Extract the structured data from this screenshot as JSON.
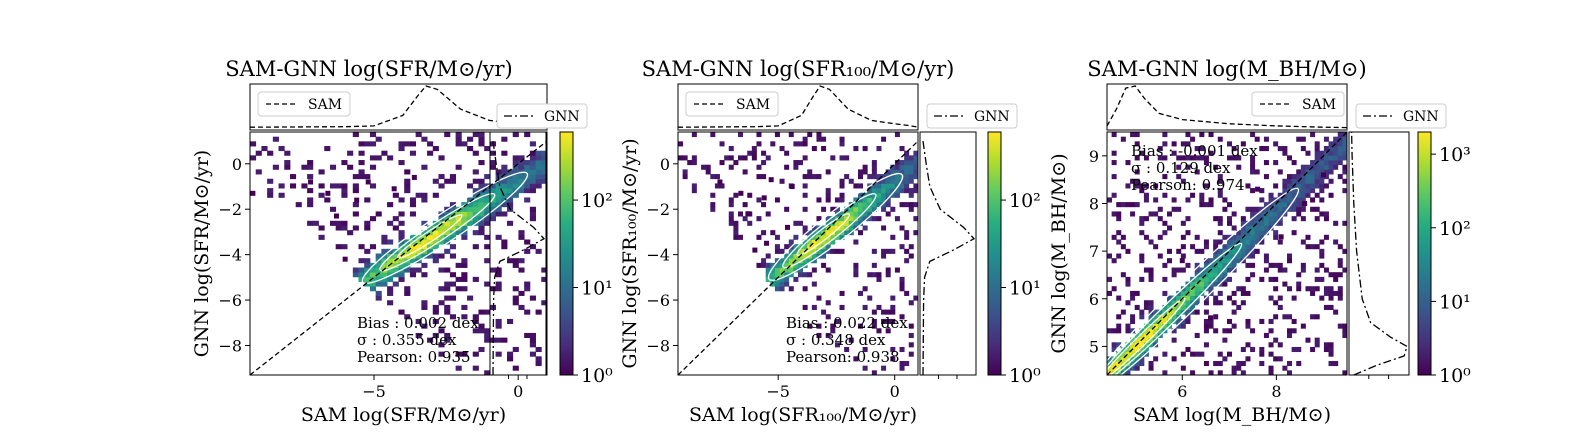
{
  "figure": {
    "background": "#ffffff",
    "colormap": "viridis",
    "contour_color": "#ffffff",
    "one_to_one_line_color": "#000000"
  },
  "chart_data": [
    {
      "type": "heatmap",
      "title": "SAM-GNN log(SFR/M⊙/yr)",
      "xlabel": "SAM log(SFR/M⊙/yr)",
      "ylabel": "GNN log(SFR/M⊙/yr)",
      "xlim": [
        -9.3,
        1.0
      ],
      "ylim": [
        -9.3,
        1.4
      ],
      "xticks": [
        {
          "v": -5,
          "label": "−5"
        },
        {
          "v": 0,
          "label": "0"
        }
      ],
      "yticks": [
        {
          "v": 0,
          "label": "0"
        },
        {
          "v": -2,
          "label": "−2"
        },
        {
          "v": -4,
          "label": "−4"
        },
        {
          "v": -6,
          "label": "−6"
        },
        {
          "v": -8,
          "label": "−8"
        }
      ],
      "one_to_one_line": true,
      "stats": [
        "Bias : 0.002 dex",
        "σ : 0.355 dex",
        "Pearson:  0.935"
      ],
      "stats_position": "bottom-right",
      "legend_top": "SAM",
      "legend_right": "GNN",
      "colorbar": {
        "scale": "log",
        "min": 1,
        "max": 600,
        "ticks": [
          {
            "v": 1,
            "label": "10⁰"
          },
          {
            "v": 10,
            "label": "10¹"
          },
          {
            "v": 100,
            "label": "10²"
          }
        ]
      },
      "density_ridge": {
        "from": [
          -5.2,
          -5.1
        ],
        "to": [
          1.0,
          0.1
        ],
        "peak": [
          -3.2,
          -3.3
        ],
        "peak_count": 600,
        "scatter_sigma": 0.36
      },
      "outliers": [
        [
          -9.2,
          -1.3
        ],
        [
          -7.2,
          -0.8
        ],
        [
          -6.3,
          -2.3
        ],
        [
          -5.6,
          -1.6
        ],
        [
          -6.6,
          -1.3
        ],
        [
          -5.2,
          -0.8
        ],
        [
          -4.3,
          -1.1
        ],
        [
          -3.6,
          -0.6
        ],
        [
          -6.0,
          -4.2
        ]
      ],
      "marginal_top": {
        "kind": "SAM kde",
        "x": [
          -9.3,
          -6,
          -5,
          -4,
          -3.5,
          -3.2,
          -2.8,
          -2,
          -1,
          0,
          0.6,
          1.0
        ],
        "density": [
          0.02,
          0.03,
          0.05,
          0.3,
          0.75,
          1.0,
          0.92,
          0.45,
          0.18,
          0.1,
          0.06,
          0.02
        ]
      },
      "marginal_right": {
        "kind": "GNN kde",
        "y": [
          -9.3,
          -6,
          -5,
          -4.3,
          -3.8,
          -3.3,
          -2.8,
          -2,
          -1,
          0,
          0.5,
          1.0
        ],
        "density": [
          0.02,
          0.03,
          0.05,
          0.15,
          0.6,
          1.0,
          0.8,
          0.35,
          0.15,
          0.08,
          0.05,
          0.02
        ]
      }
    },
    {
      "type": "heatmap",
      "title": "SAM-GNN log(SFR₁₀₀/M⊙/yr)",
      "xlabel": "SAM log(SFR₁₀₀/M⊙/yr)",
      "ylabel": "GNN log(SFR₁₀₀/M⊙/yr)",
      "xlim": [
        -9.3,
        1.0
      ],
      "ylim": [
        -9.3,
        1.4
      ],
      "xticks": [
        {
          "v": -5,
          "label": "−5"
        },
        {
          "v": 0,
          "label": "0"
        }
      ],
      "yticks": [
        {
          "v": 0,
          "label": "0"
        },
        {
          "v": -2,
          "label": "−2"
        },
        {
          "v": -4,
          "label": "−4"
        },
        {
          "v": -6,
          "label": "−6"
        },
        {
          "v": -8,
          "label": "−8"
        }
      ],
      "one_to_one_line": true,
      "stats": [
        "Bias : 0.022 dex",
        "σ : 0.348 dex",
        "Pearson:  0.938"
      ],
      "stats_position": "bottom-right",
      "legend_top": "SAM",
      "legend_right": "GNN",
      "colorbar": {
        "scale": "log",
        "min": 1,
        "max": 600,
        "ticks": [
          {
            "v": 1,
            "label": "10⁰"
          },
          {
            "v": 10,
            "label": "10¹"
          },
          {
            "v": 100,
            "label": "10²"
          }
        ]
      },
      "density_ridge": {
        "from": [
          -5.2,
          -5.0
        ],
        "to": [
          1.0,
          0.0
        ],
        "peak": [
          -3.2,
          -3.2
        ],
        "peak_count": 600,
        "scatter_sigma": 0.35
      },
      "outliers": [
        [
          -7.5,
          -0.8
        ],
        [
          -6.3,
          -2.2
        ],
        [
          -5.6,
          -1.5
        ],
        [
          -6.6,
          -1.3
        ],
        [
          -5.3,
          -0.7
        ],
        [
          -4.4,
          -1.0
        ],
        [
          -6.0,
          -3.8
        ],
        [
          -5.5,
          -3.5
        ],
        [
          -4.6,
          -2.8
        ]
      ],
      "marginal_top": {
        "kind": "SAM kde",
        "x": [
          -9.3,
          -6,
          -5,
          -4,
          -3.5,
          -3.2,
          -2.8,
          -2,
          -1,
          0,
          0.6,
          1.0
        ],
        "density": [
          0.02,
          0.03,
          0.05,
          0.3,
          0.75,
          1.0,
          0.92,
          0.45,
          0.18,
          0.1,
          0.06,
          0.02
        ]
      },
      "marginal_right": {
        "kind": "GNN kde",
        "y": [
          -9.3,
          -6,
          -5,
          -4.3,
          -3.8,
          -3.3,
          -2.8,
          -2,
          -1,
          0,
          0.5,
          1.0
        ],
        "density": [
          0.02,
          0.03,
          0.05,
          0.15,
          0.6,
          1.0,
          0.8,
          0.35,
          0.15,
          0.08,
          0.05,
          0.02
        ]
      }
    },
    {
      "type": "heatmap",
      "title": "SAM-GNN log(M_BH/M⊙)",
      "xlabel": "SAM log(M_BH/M⊙)",
      "ylabel": "GNN log(M_BH/M⊙)",
      "xlim": [
        4.4,
        9.5
      ],
      "ylim": [
        4.4,
        9.5
      ],
      "xticks": [
        {
          "v": 6,
          "label": "6"
        },
        {
          "v": 8,
          "label": "8"
        }
      ],
      "yticks": [
        {
          "v": 5,
          "label": "5"
        },
        {
          "v": 6,
          "label": "6"
        },
        {
          "v": 7,
          "label": "7"
        },
        {
          "v": 8,
          "label": "8"
        },
        {
          "v": 9,
          "label": "9"
        }
      ],
      "one_to_one_line": true,
      "stats": [
        "Bias : -0.001 dex",
        "σ : 0.129 dex",
        "Pearson:  0.974"
      ],
      "stats_position": "top-left",
      "legend_top": "SAM",
      "legend_right": "GNN",
      "colorbar": {
        "scale": "log",
        "min": 1,
        "max": 2000,
        "ticks": [
          {
            "v": 1,
            "label": "10⁰"
          },
          {
            "v": 10,
            "label": "10¹"
          },
          {
            "v": 100,
            "label": "10²"
          },
          {
            "v": 1000,
            "label": "10³"
          }
        ]
      },
      "density_ridge": {
        "from": [
          4.5,
          4.5
        ],
        "to": [
          9.5,
          9.3
        ],
        "peak": [
          4.9,
          4.9
        ],
        "peak_count": 2000,
        "scatter_sigma": 0.16
      },
      "outliers": [
        [
          7.6,
          8.3
        ],
        [
          8.1,
          7.3
        ],
        [
          8.6,
          8.0
        ],
        [
          6.6,
          5.6
        ],
        [
          9.0,
          8.6
        ],
        [
          6.0,
          6.8
        ]
      ],
      "marginal_top": {
        "kind": "SAM kde",
        "x": [
          4.4,
          4.6,
          4.8,
          5.0,
          5.2,
          5.5,
          6.0,
          6.5,
          7.0,
          8.0,
          9.0,
          9.5
        ],
        "density": [
          0.05,
          0.45,
          0.95,
          1.0,
          0.7,
          0.35,
          0.2,
          0.15,
          0.1,
          0.05,
          0.02,
          0.01
        ]
      },
      "marginal_right": {
        "kind": "GNN kde",
        "y": [
          4.4,
          4.6,
          4.8,
          5.0,
          5.2,
          5.5,
          6.0,
          6.5,
          7.0,
          8.0,
          9.0,
          9.5
        ],
        "density": [
          0.05,
          0.45,
          0.95,
          1.0,
          0.7,
          0.35,
          0.2,
          0.15,
          0.1,
          0.05,
          0.02,
          0.01
        ]
      }
    }
  ]
}
